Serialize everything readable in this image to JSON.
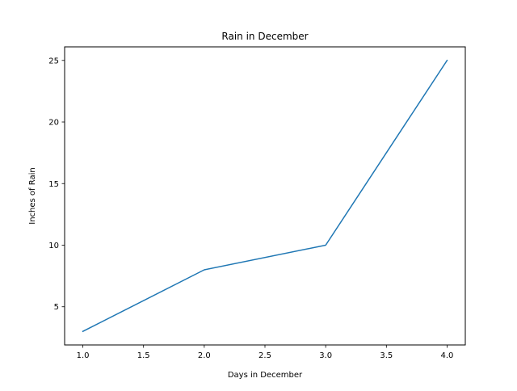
{
  "chart_data": {
    "type": "line",
    "title": "Rain in December",
    "xlabel": "Days in December",
    "ylabel": "Inches of Rain",
    "x": [
      1,
      2,
      3,
      4
    ],
    "series": [
      {
        "values": [
          3,
          8,
          10,
          25
        ],
        "color": "#1f77b4"
      }
    ],
    "xlim": [
      0.85,
      4.15
    ],
    "ylim": [
      1.9,
      26.1
    ],
    "xticks": [
      1.0,
      1.5,
      2.0,
      2.5,
      3.0,
      3.5,
      4.0
    ],
    "xtick_labels": [
      "1.0",
      "1.5",
      "2.0",
      "2.5",
      "3.0",
      "3.5",
      "4.0"
    ],
    "yticks": [
      5,
      10,
      15,
      20,
      25
    ],
    "ytick_labels": [
      "5",
      "10",
      "15",
      "20",
      "25"
    ],
    "grid": false,
    "legend": "none"
  }
}
